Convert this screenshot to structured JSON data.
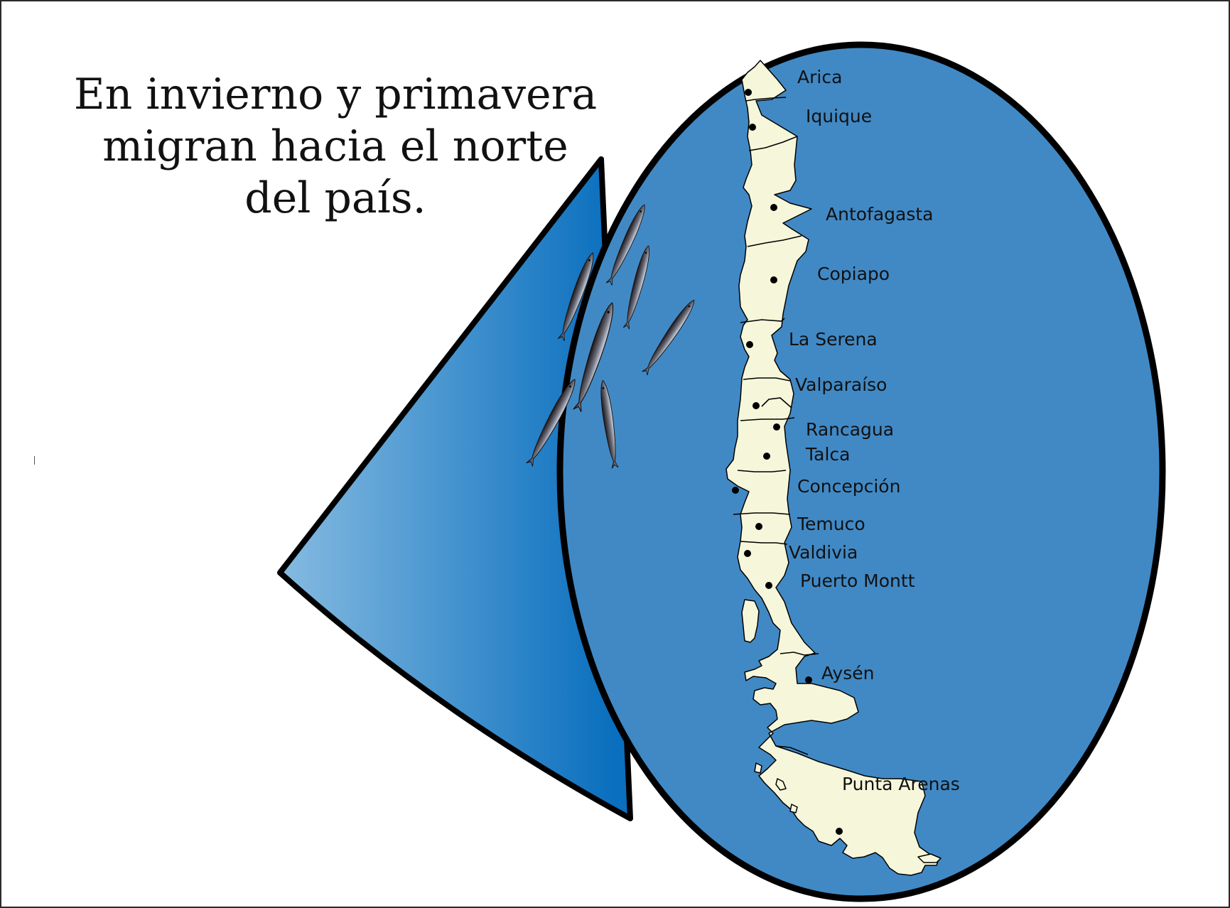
{
  "heading": {
    "lines": [
      "En invierno y primavera",
      "migran hacia el norte",
      "del país."
    ]
  },
  "map": {
    "colors": {
      "ocean": "#4189c5",
      "land": "#f6f6da",
      "outline": "#000000",
      "cone_dark": "#0a6fbe",
      "cone_light": "#86bbe1",
      "fish_dark": "#1b1214",
      "fish_light": "#d9dde6"
    },
    "cities": [
      {
        "id": "arica",
        "name": "Arica"
      },
      {
        "id": "iquique",
        "name": "Iquique"
      },
      {
        "id": "antofagasta",
        "name": "Antofagasta"
      },
      {
        "id": "copiapo",
        "name": "Copiapo"
      },
      {
        "id": "la-serena",
        "name": "La Serena"
      },
      {
        "id": "valparaiso",
        "name": "Valparaíso"
      },
      {
        "id": "rancagua",
        "name": "Rancagua"
      },
      {
        "id": "talca",
        "name": "Talca"
      },
      {
        "id": "concepcion",
        "name": "Concepción"
      },
      {
        "id": "temuco",
        "name": "Temuco"
      },
      {
        "id": "valdivia",
        "name": "Valdivia"
      },
      {
        "id": "puerto-montt",
        "name": "Puerto Montt"
      },
      {
        "id": "aysen",
        "name": "Aysén"
      },
      {
        "id": "punta-arenas",
        "name": "Punta Arenas"
      }
    ],
    "fish_school": {
      "icon": "fish-icon",
      "count": 7
    }
  }
}
